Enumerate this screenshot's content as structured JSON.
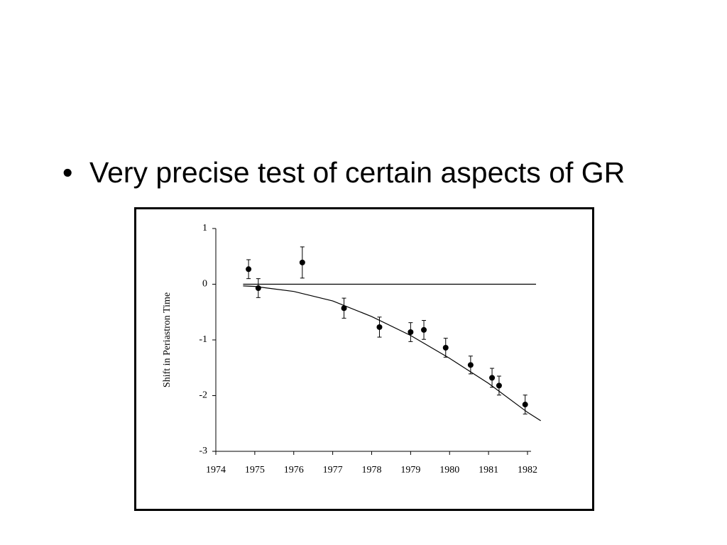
{
  "slide": {
    "bullet": "Very precise test of certain aspects of GR"
  },
  "chart_data": {
    "type": "scatter",
    "ylabel": "Shift in Periastron Time",
    "x": [
      1974.84,
      1975.09,
      1976.22,
      1977.29,
      1978.2,
      1979.0,
      1979.34,
      1979.9,
      1980.54,
      1981.09,
      1981.27,
      1981.94
    ],
    "values": [
      0.27,
      -0.07,
      0.39,
      -0.43,
      -0.77,
      -0.86,
      -0.82,
      -1.14,
      -1.45,
      -1.68,
      -1.82,
      -2.16
    ],
    "errors": [
      0.17,
      0.17,
      0.28,
      0.18,
      0.18,
      0.17,
      0.17,
      0.17,
      0.16,
      0.17,
      0.17,
      0.17
    ],
    "color": "#000000",
    "fit": {
      "x": [
        1974.7,
        1975,
        1976,
        1977,
        1978,
        1979,
        1980,
        1981,
        1982,
        1982.34
      ],
      "values": [
        -0.03,
        -0.04,
        -0.13,
        -0.3,
        -0.58,
        -0.92,
        -1.33,
        -1.78,
        -2.3,
        -2.45
      ]
    },
    "reference_line": 0,
    "xlim": [
      1974,
      1982
    ],
    "ylim": [
      -3,
      1
    ],
    "xticks": [
      1974,
      1975,
      1976,
      1977,
      1978,
      1979,
      1980,
      1981,
      1982
    ],
    "yticks": [
      1,
      0,
      -1,
      -2,
      -3
    ]
  }
}
